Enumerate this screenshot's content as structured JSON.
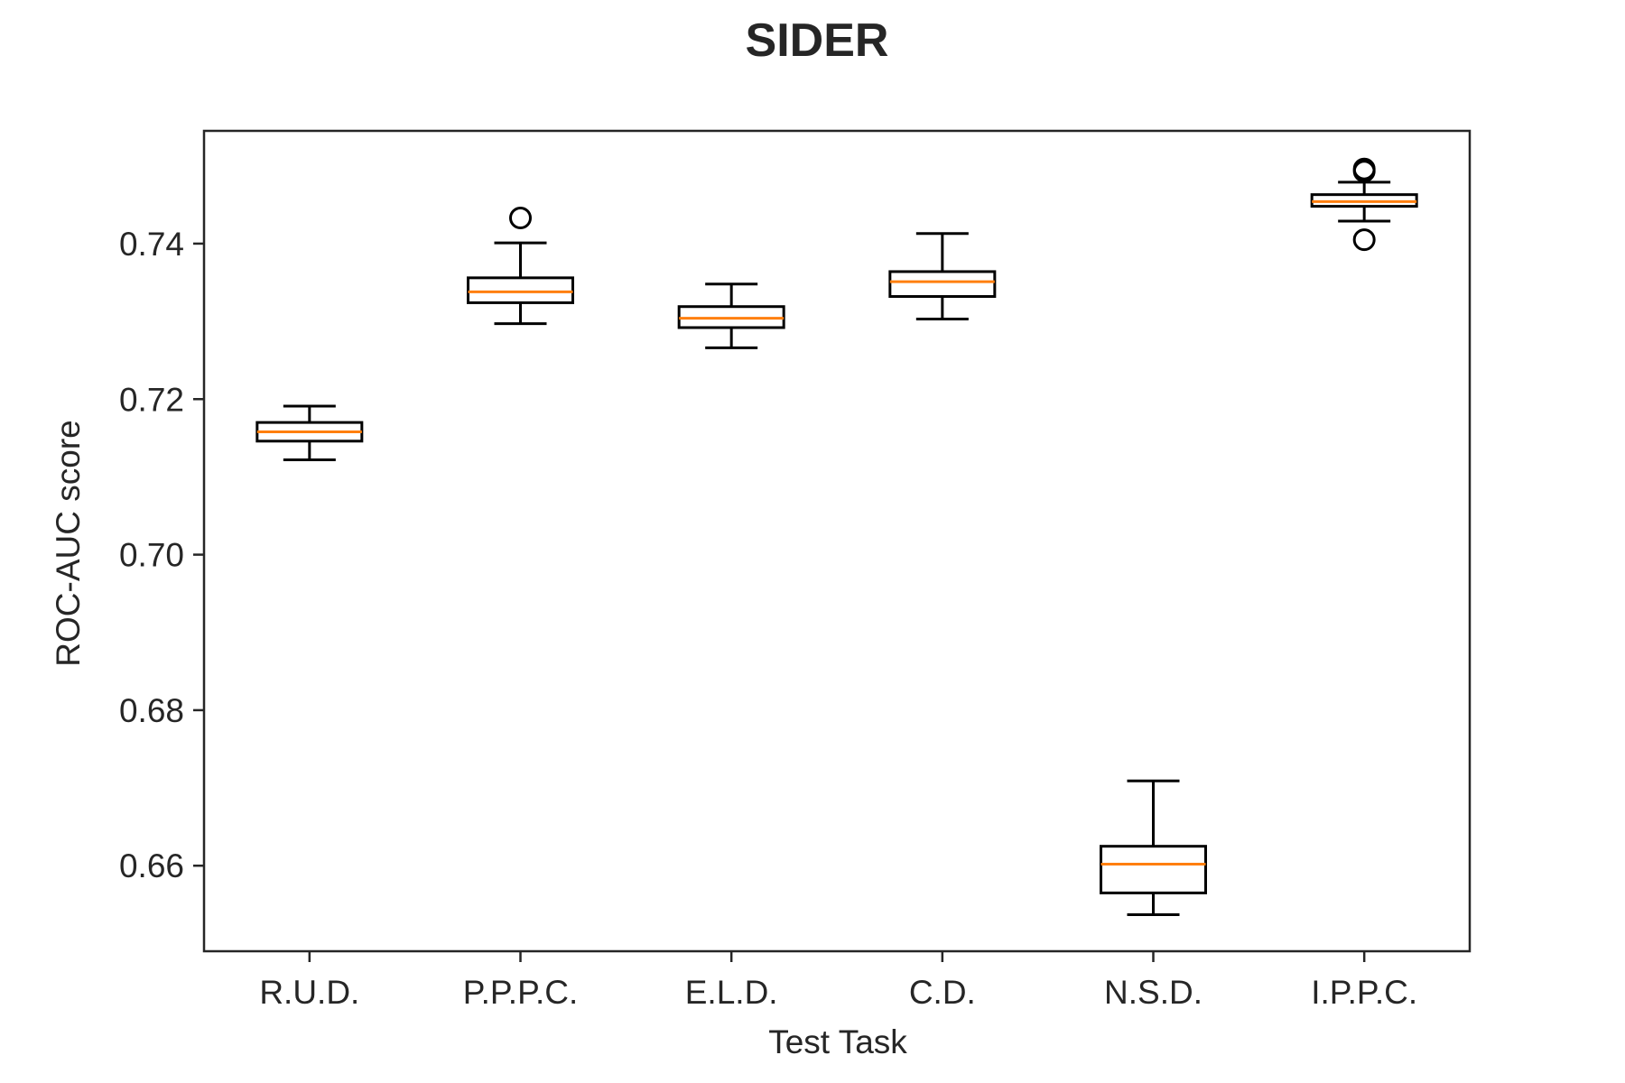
{
  "chart_data": {
    "type": "box",
    "title": "SIDER",
    "xlabel": "Test Task",
    "ylabel": "ROC-AUC score",
    "ylim": [
      0.649,
      0.7545
    ],
    "yticks": [
      0.66,
      0.68,
      0.7,
      0.72,
      0.74
    ],
    "ytick_labels": [
      "0.66",
      "0.68",
      "0.70",
      "0.72",
      "0.74"
    ],
    "grid": false,
    "colors": {
      "box": "#000000",
      "median": "#ff7f0e",
      "axes": "#262626"
    },
    "categories": [
      "R.U.D.",
      "P.P.P.C.",
      "E.L.D.",
      "C.D.",
      "N.S.D.",
      "I.P.P.C."
    ],
    "boxes": [
      {
        "category": "R.U.D.",
        "whisker_low": 0.7122,
        "q1": 0.7146,
        "median": 0.7158,
        "q3": 0.717,
        "whisker_high": 0.7191,
        "outliers": []
      },
      {
        "category": "P.P.P.C.",
        "whisker_low": 0.7297,
        "q1": 0.7324,
        "median": 0.7338,
        "q3": 0.7356,
        "whisker_high": 0.7401,
        "outliers": [
          0.7433
        ]
      },
      {
        "category": "E.L.D.",
        "whisker_low": 0.7266,
        "q1": 0.7292,
        "median": 0.7304,
        "q3": 0.7319,
        "whisker_high": 0.7348,
        "outliers": []
      },
      {
        "category": "C.D.",
        "whisker_low": 0.7303,
        "q1": 0.7332,
        "median": 0.7351,
        "q3": 0.7364,
        "whisker_high": 0.7413,
        "outliers": []
      },
      {
        "category": "N.S.D.",
        "whisker_low": 0.6537,
        "q1": 0.6565,
        "median": 0.6602,
        "q3": 0.6625,
        "whisker_high": 0.6709,
        "outliers": []
      },
      {
        "category": "I.P.P.C.",
        "whisker_low": 0.7429,
        "q1": 0.7448,
        "median": 0.7454,
        "q3": 0.7463,
        "whisker_high": 0.7479,
        "outliers": [
          0.7405,
          0.7493,
          0.7496
        ]
      }
    ]
  }
}
